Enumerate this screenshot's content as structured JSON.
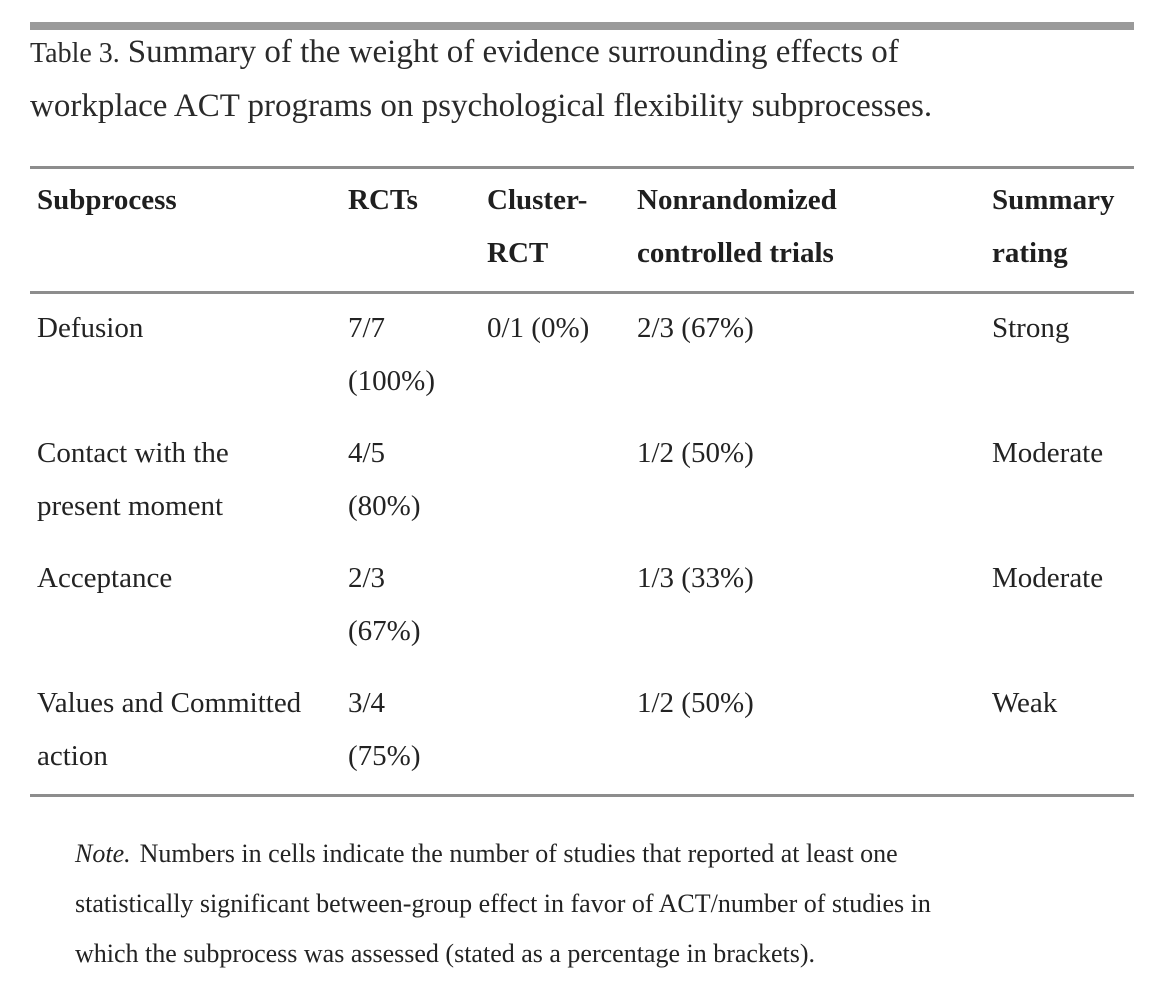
{
  "colors": {
    "text": "#232323",
    "rule": "#8d8d8d",
    "topbar": "#9a9a9a",
    "bg": "#ffffff"
  },
  "caption": {
    "prefix": "Table 3.",
    "line1_rest": "Summary of the weight of evidence surrounding effects of",
    "line2": "workplace ACT programs on psychological flexibility subprocesses.",
    "full": "Table 3. Summary of the weight of evidence surrounding effects of workplace ACT programs on psychological flexibility subprocesses."
  },
  "table": {
    "headers": [
      {
        "label": "Subprocess",
        "lines": [
          "Subprocess"
        ]
      },
      {
        "label": "RCTs",
        "lines": [
          "RCTs"
        ]
      },
      {
        "label": "Cluster-RCT",
        "lines": [
          "Cluster-",
          "RCT"
        ]
      },
      {
        "label": "Nonrandomized controlled trials",
        "lines": [
          "Nonrandomized",
          "controlled trials"
        ]
      },
      {
        "label": "Summary rating",
        "lines": [
          "Summary",
          "rating"
        ]
      }
    ],
    "rows": [
      {
        "subprocess": [
          "Defusion"
        ],
        "rcts": [
          "7/7",
          "(100%)"
        ],
        "cluster_rct": [
          "0/1 (0%)"
        ],
        "nonrandomized": [
          "2/3 (67%)"
        ],
        "rating": "Strong"
      },
      {
        "subprocess": [
          "Contact with the",
          "present moment"
        ],
        "rcts": [
          "4/5",
          "(80%)"
        ],
        "cluster_rct": [],
        "nonrandomized": [
          "1/2 (50%)"
        ],
        "rating": "Moderate"
      },
      {
        "subprocess": [
          "Acceptance"
        ],
        "rcts": [
          "2/3",
          "(67%)"
        ],
        "cluster_rct": [],
        "nonrandomized": [
          "1/3 (33%)"
        ],
        "rating": "Moderate"
      },
      {
        "subprocess": [
          "Values and Committed",
          "action"
        ],
        "rcts": [
          "3/4",
          "(75%)"
        ],
        "cluster_rct": [],
        "nonrandomized": [
          "1/2 (50%)"
        ],
        "rating": "Weak"
      }
    ]
  },
  "note": {
    "lead": "Note.",
    "line1_rest": "Numbers in cells indicate the number of studies that reported at least one",
    "line2": "statistically significant between-group effect in favor of ACT/number of studies in",
    "line3": "which the subprocess was assessed (stated as a percentage in brackets).",
    "full": "Note. Numbers in cells indicate the number of studies that reported at least one statistically significant between-group effect in favor of ACT/number of studies in which the subprocess was assessed (stated as a percentage in brackets)."
  }
}
